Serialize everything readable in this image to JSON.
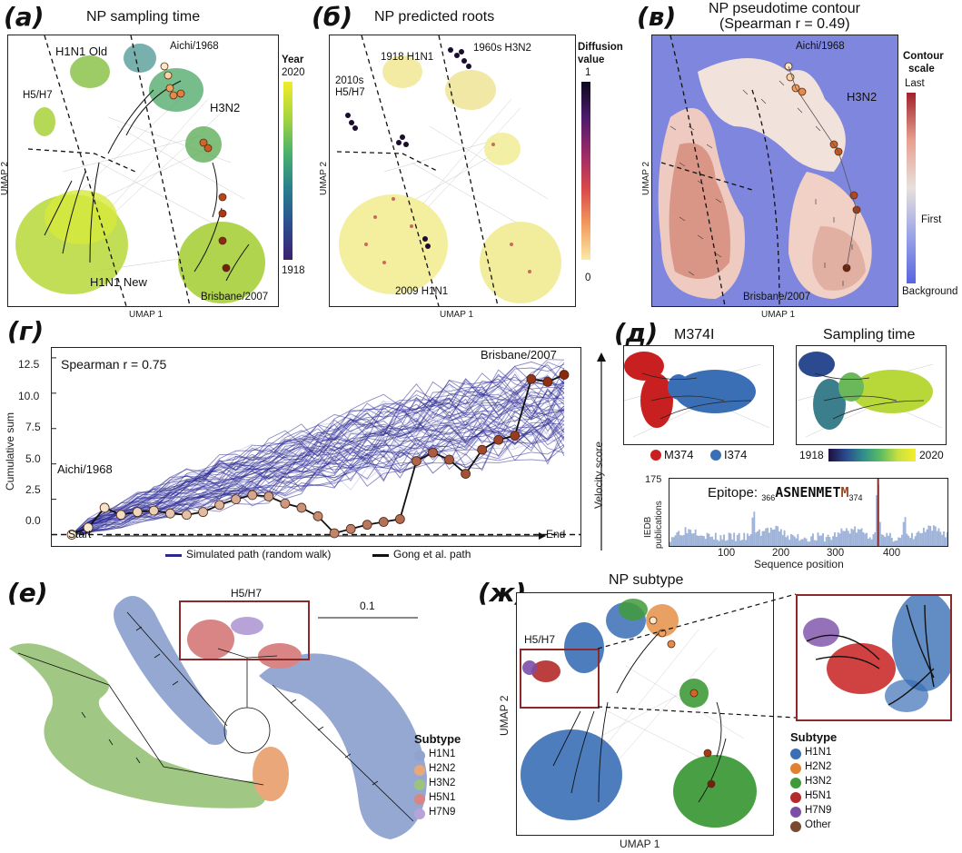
{
  "panels": {
    "a": {
      "letter": "(а)",
      "title": "NP sampling time",
      "labels": [
        "H1N1 Old",
        "H5/H7",
        "Aichi/1968",
        "H3N2",
        "H1N1 New",
        "Brisbane/2007"
      ],
      "xlabel": "UMAP 1",
      "ylabel": "UMAP 2",
      "colorbar": {
        "title": "Year",
        "max": "2020",
        "min": "1918"
      }
    },
    "b": {
      "letter": "(б)",
      "title": "NP predicted roots",
      "labels": [
        "1960s H3N2",
        "1918 H1N1",
        "2010s",
        "H5/H7",
        "2009 H1N1"
      ],
      "xlabel": "UMAP 1",
      "ylabel": "UMAP 2",
      "colorbar": {
        "title_line1": "Diffusion",
        "title_line2": "value",
        "max": "1",
        "min": "0"
      }
    },
    "c": {
      "letter": "(в)",
      "title_line1": "NP pseudotime contour",
      "title_line2": "(Spearman r = 0.49)",
      "labels": [
        "Aichi/1968",
        "H3N2",
        "Brisbane/2007"
      ],
      "xlabel": "UMAP 1",
      "ylabel": "UMAP 2",
      "colorbar": {
        "title_line1": "Contour",
        "title_line2": "scale",
        "last": "Last",
        "first": "First",
        "background": "Background"
      }
    },
    "d": {
      "letter": "(г)",
      "spearman": "Spearman r = 0.75",
      "ylabel": "Cumulative sum",
      "start": "Start",
      "end": "End",
      "side_label": "Velocity score",
      "label_start": "Aichi/1968",
      "label_end": "Brisbane/2007",
      "legend": [
        "Simulated path (random walk)",
        "Gong et al. path"
      ]
    },
    "e": {
      "letter": "(д)",
      "left_title": "M374I",
      "right_title": "Sampling time",
      "legend": [
        "M374",
        "I374"
      ],
      "colorbar": {
        "min": "1918",
        "max": "2020"
      },
      "epitope_prefix": "Epitope:",
      "epitope_start": "366",
      "epitope_seq": "ASNENMET",
      "epitope_mut": "M",
      "epitope_end": "374",
      "ylabel_line1": "IEDB",
      "ylabel_line2": "publications",
      "xlabel": "Sequence position"
    },
    "f": {
      "letter": "(е)",
      "box_label": "H5/H7",
      "scale": "0.1"
    },
    "g": {
      "letter": "(ж)",
      "title": "NP subtype",
      "box_label": "H5/H7",
      "xlabel": "UMAP 1",
      "ylabel": "UMAP 2"
    }
  },
  "subtype_legend": {
    "title": "Subtype",
    "tree_items": [
      {
        "label": "H1N1",
        "color": "#8fa3cf"
      },
      {
        "label": "H2N2",
        "color": "#e9a77a"
      },
      {
        "label": "H3N2",
        "color": "#9cc47d"
      },
      {
        "label": "H5N1",
        "color": "#d98585"
      },
      {
        "label": "H7N9",
        "color": "#b8a3d8"
      }
    ],
    "umap_items": [
      {
        "label": "H1N1",
        "color": "#3a6fb5"
      },
      {
        "label": "H2N2",
        "color": "#e0822f"
      },
      {
        "label": "H3N2",
        "color": "#3f9a3a"
      },
      {
        "label": "H5N1",
        "color": "#b52a2a"
      },
      {
        "label": "H7N9",
        "color": "#7b4ea8"
      },
      {
        "label": "Other",
        "color": "#7a4a30"
      }
    ]
  },
  "chart_data": {
    "type": "line",
    "xlabel": "",
    "ylabel": "Cumulative sum",
    "ylim": [
      -0.8,
      13.2
    ],
    "yticks": [
      "0.0",
      "2.5",
      "5.0",
      "7.5",
      "10.0",
      "12.5"
    ],
    "series": [
      {
        "name": "Gong et al. path",
        "x": [
          0,
          1,
          2,
          3,
          4,
          5,
          6,
          7,
          8,
          9,
          10,
          11,
          12,
          13,
          14,
          15,
          16,
          17,
          18,
          19,
          20,
          21,
          22,
          23,
          24,
          25,
          26,
          27,
          28,
          29,
          30
        ],
        "values": [
          0.0,
          0.5,
          1.9,
          1.4,
          1.6,
          1.7,
          1.5,
          1.4,
          1.6,
          2.1,
          2.5,
          2.8,
          2.7,
          2.2,
          1.9,
          1.3,
          0.1,
          0.4,
          0.7,
          0.9,
          1.1,
          5.2,
          5.8,
          5.3,
          4.3,
          6.0,
          6.7,
          7.0,
          11.0,
          10.8,
          11.3
        ]
      },
      {
        "name": "Simulated path (random walk)",
        "note": "",
        "envelope_low": [
          0.0,
          0.0,
          0.2,
          0.4,
          0.6,
          0.8,
          1.0,
          1.2,
          1.4,
          1.6,
          1.8,
          2.0,
          2.2,
          2.4,
          2.6,
          2.8,
          3.0,
          3.2,
          3.4,
          3.6,
          3.8,
          4.0,
          4.2,
          4.3,
          4.4,
          4.5,
          4.6,
          4.7,
          4.8,
          4.9,
          5.0
        ],
        "envelope_high": [
          0.0,
          1.2,
          1.8,
          2.4,
          3.0,
          3.6,
          4.1,
          4.6,
          5.1,
          5.6,
          6.0,
          6.5,
          7.0,
          7.4,
          7.9,
          8.3,
          8.8,
          9.2,
          9.6,
          10.0,
          10.4,
          10.8,
          11.1,
          11.4,
          11.7,
          11.9,
          12.1,
          12.3,
          12.5,
          12.7,
          12.9
        ]
      }
    ]
  },
  "iedb_chart": {
    "type": "bar",
    "xlabel": "Sequence position",
    "ylabel": "IEDB publications",
    "ylim": [
      0,
      175
    ],
    "yticks": [
      "175"
    ],
    "xticks": [
      "100",
      "200",
      "300",
      "400"
    ],
    "xlim": [
      1,
      498
    ],
    "marker_position": 374,
    "peaks": [
      {
        "pos": 150,
        "value": 95
      },
      {
        "pos": 372,
        "value": 170
      },
      {
        "pos": 420,
        "value": 80
      }
    ]
  }
}
